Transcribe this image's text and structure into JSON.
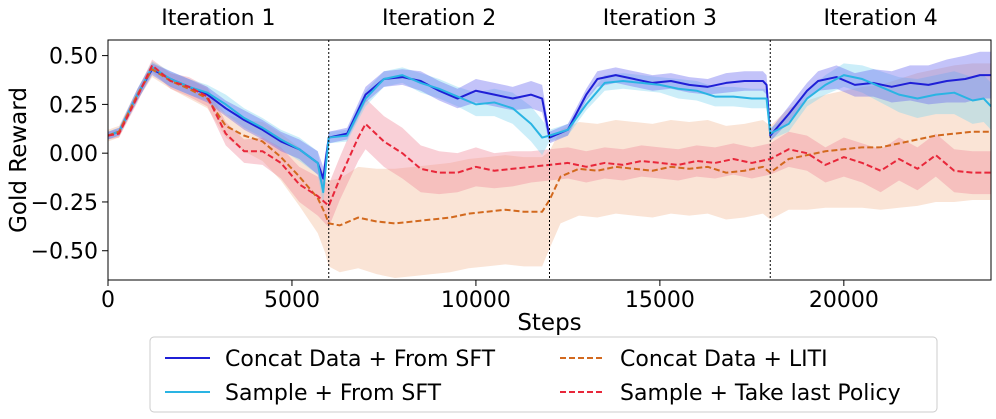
{
  "chart_data": {
    "type": "line",
    "title": "",
    "xlabel": "Steps",
    "ylabel": "Gold Reward",
    "xlim": [
      0,
      24000
    ],
    "ylim": [
      -0.65,
      0.58
    ],
    "xticks": [
      0,
      5000,
      10000,
      15000,
      20000
    ],
    "xtick_labels": [
      "0",
      "5000",
      "10000",
      "15000",
      "20000"
    ],
    "yticks": [
      0.5,
      0.25,
      0.0,
      -0.25,
      -0.5
    ],
    "ytick_labels": [
      "0.50",
      "0.25",
      "0.00",
      "−0.25",
      "−0.50"
    ],
    "iterations": [
      {
        "label": "Iteration 1",
        "start": 0,
        "end": 6000
      },
      {
        "label": "Iteration 2",
        "start": 6000,
        "end": 12000
      },
      {
        "label": "Iteration 3",
        "start": 12000,
        "end": 18000
      },
      {
        "label": "Iteration 4",
        "start": 18000,
        "end": 24000
      }
    ],
    "boundaries": [
      6000,
      12000,
      18000
    ],
    "legend_position": "below",
    "series": [
      {
        "name": "Concat Data + From SFT",
        "color": "#1f1fd6",
        "style": "solid",
        "band_color": "#6a6af0",
        "x": [
          0,
          300,
          800,
          1200,
          1700,
          2200,
          2700,
          3200,
          3700,
          4200,
          4700,
          5200,
          5700,
          5850,
          6000,
          6500,
          7000,
          7500,
          8000,
          8500,
          9000,
          9500,
          10000,
          10500,
          11000,
          11500,
          11800,
          12000,
          12500,
          13000,
          13300,
          13800,
          14300,
          14800,
          15300,
          15800,
          16300,
          16800,
          17300,
          17800,
          17900,
          18000,
          18500,
          19000,
          19300,
          19800,
          20300,
          20800,
          21300,
          21800,
          22300,
          22800,
          23300,
          23700,
          24000
        ],
        "y": [
          0.09,
          0.11,
          0.3,
          0.43,
          0.38,
          0.34,
          0.3,
          0.23,
          0.17,
          0.12,
          0.06,
          0.02,
          -0.05,
          -0.13,
          0.08,
          0.1,
          0.3,
          0.38,
          0.39,
          0.37,
          0.32,
          0.28,
          0.32,
          0.3,
          0.28,
          0.3,
          0.28,
          0.08,
          0.12,
          0.3,
          0.38,
          0.4,
          0.38,
          0.36,
          0.37,
          0.35,
          0.34,
          0.36,
          0.37,
          0.37,
          0.35,
          0.09,
          0.2,
          0.32,
          0.37,
          0.39,
          0.35,
          0.36,
          0.34,
          0.36,
          0.35,
          0.37,
          0.38,
          0.4,
          0.4
        ],
        "band": [
          0.02,
          0.02,
          0.03,
          0.03,
          0.04,
          0.04,
          0.04,
          0.04,
          0.05,
          0.05,
          0.05,
          0.05,
          0.06,
          0.06,
          0.03,
          0.03,
          0.04,
          0.04,
          0.04,
          0.05,
          0.05,
          0.05,
          0.06,
          0.06,
          0.06,
          0.07,
          0.07,
          0.03,
          0.03,
          0.03,
          0.04,
          0.04,
          0.04,
          0.04,
          0.04,
          0.04,
          0.04,
          0.05,
          0.05,
          0.05,
          0.05,
          0.03,
          0.04,
          0.04,
          0.05,
          0.06,
          0.06,
          0.07,
          0.08,
          0.09,
          0.1,
          0.11,
          0.12,
          0.12,
          0.12
        ]
      },
      {
        "name": "Sample + From SFT",
        "color": "#2ab4e3",
        "style": "solid",
        "band_color": "#7fd4f0",
        "x": [
          0,
          300,
          800,
          1200,
          1700,
          2200,
          2700,
          3200,
          3700,
          4200,
          4700,
          5200,
          5700,
          5850,
          6000,
          6500,
          7000,
          7500,
          8000,
          8500,
          9000,
          9500,
          10000,
          10500,
          11000,
          11500,
          11800,
          12000,
          12500,
          13000,
          13500,
          14000,
          14500,
          15000,
          15500,
          16000,
          16500,
          17000,
          17500,
          17900,
          18000,
          18500,
          19000,
          19500,
          20000,
          20500,
          21000,
          21500,
          22000,
          22500,
          23000,
          23500,
          23800,
          24000
        ],
        "y": [
          0.09,
          0.11,
          0.3,
          0.44,
          0.38,
          0.34,
          0.31,
          0.25,
          0.18,
          0.13,
          0.07,
          0.02,
          -0.05,
          -0.2,
          0.08,
          0.09,
          0.28,
          0.38,
          0.4,
          0.36,
          0.33,
          0.29,
          0.25,
          0.26,
          0.23,
          0.15,
          0.08,
          0.09,
          0.12,
          0.25,
          0.36,
          0.37,
          0.36,
          0.35,
          0.33,
          0.32,
          0.29,
          0.29,
          0.28,
          0.28,
          0.1,
          0.15,
          0.28,
          0.35,
          0.4,
          0.38,
          0.34,
          0.3,
          0.28,
          0.3,
          0.31,
          0.27,
          0.28,
          0.24
        ],
        "band": [
          0.02,
          0.02,
          0.03,
          0.03,
          0.04,
          0.04,
          0.04,
          0.05,
          0.05,
          0.05,
          0.05,
          0.06,
          0.06,
          0.06,
          0.03,
          0.03,
          0.04,
          0.04,
          0.04,
          0.05,
          0.05,
          0.05,
          0.06,
          0.07,
          0.08,
          0.09,
          0.09,
          0.03,
          0.03,
          0.03,
          0.04,
          0.04,
          0.04,
          0.04,
          0.05,
          0.05,
          0.05,
          0.05,
          0.05,
          0.05,
          0.03,
          0.04,
          0.04,
          0.05,
          0.06,
          0.07,
          0.08,
          0.09,
          0.1,
          0.1,
          0.11,
          0.12,
          0.12,
          0.12
        ]
      },
      {
        "name": "Concat Data + LITI",
        "color": "#d2691e",
        "style": "dashed",
        "band_color": "#f1b38a",
        "x": [
          0,
          300,
          800,
          1200,
          1700,
          2200,
          2700,
          3200,
          3700,
          4200,
          4700,
          5200,
          5700,
          5900,
          6000,
          6300,
          6800,
          7300,
          7800,
          8300,
          8800,
          9300,
          9800,
          10300,
          10800,
          11300,
          11800,
          12000,
          12300,
          12800,
          13300,
          13800,
          14300,
          14800,
          15300,
          15800,
          16300,
          16800,
          17300,
          17800,
          18000,
          18500,
          19000,
          19500,
          20000,
          20500,
          21000,
          21500,
          22000,
          22500,
          23000,
          23500,
          24000
        ],
        "y": [
          0.09,
          0.11,
          0.3,
          0.43,
          0.37,
          0.33,
          0.28,
          0.14,
          0.09,
          0.06,
          -0.02,
          -0.12,
          -0.23,
          -0.31,
          -0.36,
          -0.37,
          -0.33,
          -0.35,
          -0.36,
          -0.35,
          -0.34,
          -0.33,
          -0.31,
          -0.3,
          -0.29,
          -0.3,
          -0.3,
          -0.24,
          -0.12,
          -0.08,
          -0.09,
          -0.07,
          -0.08,
          -0.09,
          -0.07,
          -0.08,
          -0.07,
          -0.1,
          -0.09,
          -0.07,
          -0.1,
          -0.03,
          -0.01,
          0.01,
          0.02,
          0.03,
          0.03,
          0.05,
          0.07,
          0.09,
          0.1,
          0.11,
          0.11
        ],
        "band": [
          0.03,
          0.03,
          0.03,
          0.04,
          0.04,
          0.05,
          0.05,
          0.06,
          0.08,
          0.1,
          0.12,
          0.15,
          0.18,
          0.2,
          0.22,
          0.24,
          0.26,
          0.27,
          0.28,
          0.28,
          0.28,
          0.28,
          0.28,
          0.28,
          0.28,
          0.28,
          0.28,
          0.25,
          0.24,
          0.24,
          0.24,
          0.24,
          0.24,
          0.24,
          0.24,
          0.24,
          0.24,
          0.24,
          0.24,
          0.24,
          0.24,
          0.26,
          0.28,
          0.29,
          0.3,
          0.31,
          0.32,
          0.33,
          0.34,
          0.34,
          0.35,
          0.35,
          0.35
        ]
      },
      {
        "name": "Sample + Take last Policy",
        "color": "#e8273a",
        "style": "dashed",
        "band_color": "#f08a9a",
        "x": [
          0,
          300,
          800,
          1200,
          1700,
          2200,
          2700,
          3200,
          3700,
          4200,
          4700,
          5200,
          5700,
          6000,
          6300,
          6800,
          7000,
          7500,
          8000,
          8500,
          9000,
          9500,
          10000,
          10500,
          11000,
          11500,
          12000,
          12500,
          13000,
          13500,
          14000,
          14500,
          15000,
          15500,
          16000,
          16500,
          17000,
          17500,
          18000,
          18500,
          19000,
          19500,
          20000,
          20500,
          21000,
          21500,
          22000,
          22500,
          23000,
          23500,
          24000
        ],
        "y": [
          0.09,
          0.1,
          0.29,
          0.45,
          0.37,
          0.34,
          0.29,
          0.1,
          0.01,
          0.01,
          -0.05,
          -0.16,
          -0.22,
          -0.27,
          -0.13,
          0.08,
          0.15,
          0.06,
          0.0,
          -0.08,
          -0.1,
          -0.1,
          -0.07,
          -0.09,
          -0.08,
          -0.07,
          -0.06,
          -0.05,
          -0.07,
          -0.05,
          -0.06,
          -0.04,
          -0.05,
          -0.06,
          -0.04,
          -0.05,
          -0.03,
          -0.05,
          -0.03,
          0.02,
          0.0,
          -0.06,
          -0.02,
          -0.05,
          -0.09,
          -0.03,
          -0.08,
          -0.01,
          -0.09,
          -0.1,
          -0.1
        ],
        "band": [
          0.02,
          0.02,
          0.03,
          0.03,
          0.04,
          0.05,
          0.05,
          0.06,
          0.06,
          0.07,
          0.08,
          0.09,
          0.1,
          0.11,
          0.11,
          0.12,
          0.13,
          0.13,
          0.13,
          0.12,
          0.11,
          0.1,
          0.1,
          0.09,
          0.09,
          0.08,
          0.08,
          0.08,
          0.08,
          0.08,
          0.08,
          0.08,
          0.08,
          0.08,
          0.08,
          0.08,
          0.08,
          0.08,
          0.08,
          0.09,
          0.09,
          0.09,
          0.1,
          0.1,
          0.11,
          0.11,
          0.11,
          0.11,
          0.11,
          0.11,
          0.11
        ]
      }
    ]
  }
}
